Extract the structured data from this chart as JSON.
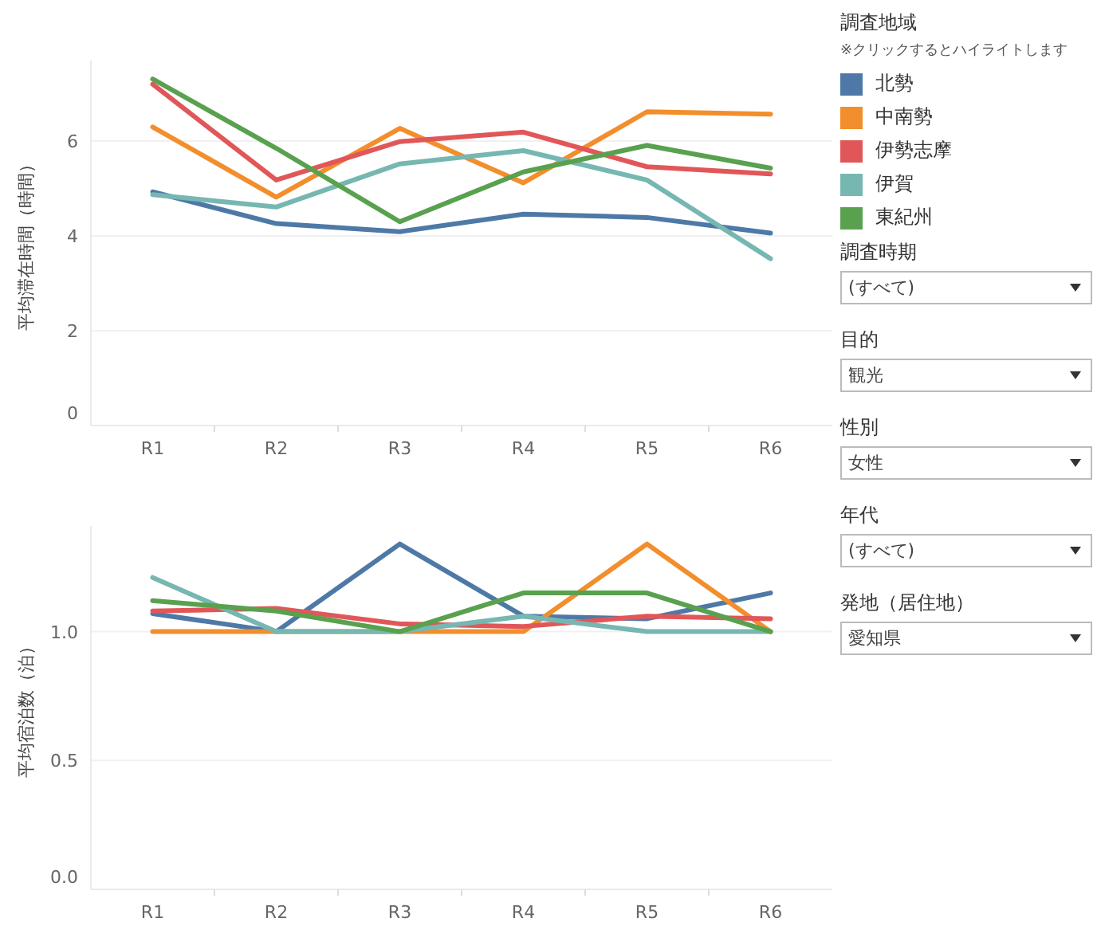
{
  "chart_data": [
    {
      "type": "line",
      "ylabel": "平均滞在時間（時間）",
      "categories": [
        "R1",
        "R2",
        "R3",
        "R4",
        "R5",
        "R6"
      ],
      "ylim": [
        0,
        7.7
      ],
      "yticks": [
        0,
        2,
        4,
        6
      ],
      "grid": "y",
      "legend": "right",
      "legend_title": "調査地域",
      "annotations": [
        "※クリックするとハイライトします"
      ],
      "series": [
        {
          "name": "北勢",
          "color": "#4e79a7",
          "values": [
            4.93,
            4.26,
            4.09,
            4.46,
            4.39,
            4.06
          ]
        },
        {
          "name": "中南勢",
          "color": "#f28e2b",
          "values": [
            6.3,
            4.82,
            6.27,
            5.12,
            6.62,
            6.57
          ]
        },
        {
          "name": "伊勢志摩",
          "color": "#e15759",
          "values": [
            7.2,
            5.18,
            5.99,
            6.19,
            5.46,
            5.31
          ]
        },
        {
          "name": "伊賀",
          "color": "#76b7b2",
          "values": [
            4.87,
            4.61,
            5.52,
            5.8,
            5.18,
            3.52
          ]
        },
        {
          "name": "東紀州",
          "color": "#59a14f",
          "values": [
            7.31,
            5.85,
            4.3,
            5.35,
            5.91,
            5.43
          ]
        }
      ]
    },
    {
      "type": "line",
      "ylabel": "平均宿泊数（泊）",
      "categories": [
        "R1",
        "R2",
        "R3",
        "R4",
        "R5",
        "R6"
      ],
      "ylim": [
        0,
        1.41
      ],
      "yticks": [
        {
          "value": 0,
          "label": "0.0"
        },
        {
          "value": 0.5,
          "label": "0.5"
        },
        {
          "value": 1,
          "label": "1.0"
        }
      ],
      "grid": "y",
      "series": [
        {
          "color": "#4e79a7",
          "values": [
            1.07,
            1.0,
            1.34,
            1.06,
            1.05,
            1.15
          ]
        },
        {
          "color": "#f28e2b",
          "values": [
            1.0,
            1.0,
            1.0,
            1.0,
            1.34,
            1.0
          ]
        },
        {
          "color": "#e15759",
          "values": [
            1.08,
            1.09,
            1.03,
            1.02,
            1.06,
            1.05
          ]
        },
        {
          "color": "#76b7b2",
          "values": [
            1.21,
            1.0,
            1.0,
            1.06,
            1.0,
            1.0
          ]
        },
        {
          "color": "#59a14f",
          "values": [
            1.12,
            1.08,
            1.0,
            1.15,
            1.15,
            1.0
          ]
        }
      ]
    },
    {
      "type": "other",
      "annotations": [
        "調査時期",
        "(すべて)",
        "目的",
        "観光",
        "性別",
        "女性",
        "年代",
        "(すべて)",
        "発地（居住地）",
        "愛知県"
      ]
    }
  ]
}
